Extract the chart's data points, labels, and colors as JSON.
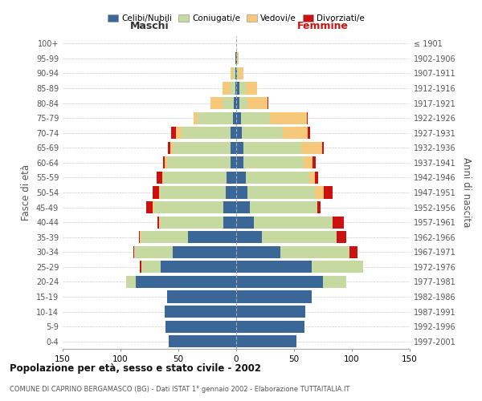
{
  "age_groups": [
    "0-4",
    "5-9",
    "10-14",
    "15-19",
    "20-24",
    "25-29",
    "30-34",
    "35-39",
    "40-44",
    "45-49",
    "50-54",
    "55-59",
    "60-64",
    "65-69",
    "70-74",
    "75-79",
    "80-84",
    "85-89",
    "90-94",
    "95-99",
    "100+"
  ],
  "birth_years": [
    "1997-2001",
    "1992-1996",
    "1987-1991",
    "1982-1986",
    "1977-1981",
    "1972-1976",
    "1967-1971",
    "1962-1966",
    "1957-1961",
    "1952-1956",
    "1947-1951",
    "1942-1946",
    "1937-1941",
    "1932-1936",
    "1927-1931",
    "1922-1926",
    "1917-1921",
    "1912-1916",
    "1907-1911",
    "1902-1906",
    "≤ 1901"
  ],
  "maschi": {
    "celibi": [
      58,
      61,
      62,
      60,
      87,
      65,
      55,
      42,
      11,
      11,
      9,
      8,
      5,
      5,
      5,
      3,
      2,
      1,
      1,
      1,
      0
    ],
    "coniugati": [
      0,
      0,
      0,
      0,
      8,
      17,
      33,
      40,
      55,
      60,
      57,
      55,
      55,
      50,
      42,
      30,
      10,
      4,
      2,
      0,
      0
    ],
    "vedovi": [
      0,
      0,
      0,
      0,
      0,
      0,
      0,
      1,
      1,
      1,
      1,
      1,
      2,
      2,
      5,
      4,
      10,
      7,
      2,
      0,
      0
    ],
    "divorziati": [
      0,
      0,
      0,
      0,
      0,
      1,
      1,
      1,
      1,
      6,
      5,
      5,
      1,
      2,
      4,
      0,
      0,
      0,
      0,
      0,
      0
    ]
  },
  "femmine": {
    "nubili": [
      52,
      59,
      60,
      65,
      75,
      65,
      38,
      22,
      15,
      12,
      10,
      8,
      6,
      6,
      5,
      4,
      3,
      3,
      1,
      1,
      0
    ],
    "coniugate": [
      0,
      0,
      0,
      0,
      20,
      45,
      60,
      65,
      68,
      58,
      58,
      55,
      52,
      50,
      35,
      25,
      7,
      5,
      1,
      0,
      0
    ],
    "vedove": [
      0,
      0,
      0,
      0,
      0,
      0,
      0,
      0,
      0,
      0,
      8,
      5,
      8,
      18,
      22,
      32,
      17,
      10,
      4,
      1,
      0
    ],
    "divorziate": [
      0,
      0,
      0,
      0,
      0,
      0,
      7,
      8,
      10,
      3,
      7,
      3,
      3,
      2,
      2,
      1,
      1,
      0,
      0,
      0,
      0
    ]
  },
  "colors": {
    "celibi_nubili": "#3a6698",
    "coniugati_e": "#c5d9a0",
    "vedovi_e": "#f5c87a",
    "divorziati_e": "#cc1111"
  },
  "xlim": 150,
  "title": "Popolazione per età, sesso e stato civile - 2002",
  "subtitle": "COMUNE DI CAPRINO BERGAMASCO (BG) - Dati ISTAT 1° gennaio 2002 - Elaborazione TUTTAITALIA.IT",
  "ylabel_left": "Fasce di età",
  "ylabel_right": "Anni di nascita",
  "xlabel_left": "Maschi",
  "xlabel_right": "Femmine",
  "legend_labels": [
    "Celibi/Nubili",
    "Coniugati/e",
    "Vedovi/e",
    "Divorziati/e"
  ],
  "background_color": "#ffffff",
  "grid_color": "#cccccc"
}
